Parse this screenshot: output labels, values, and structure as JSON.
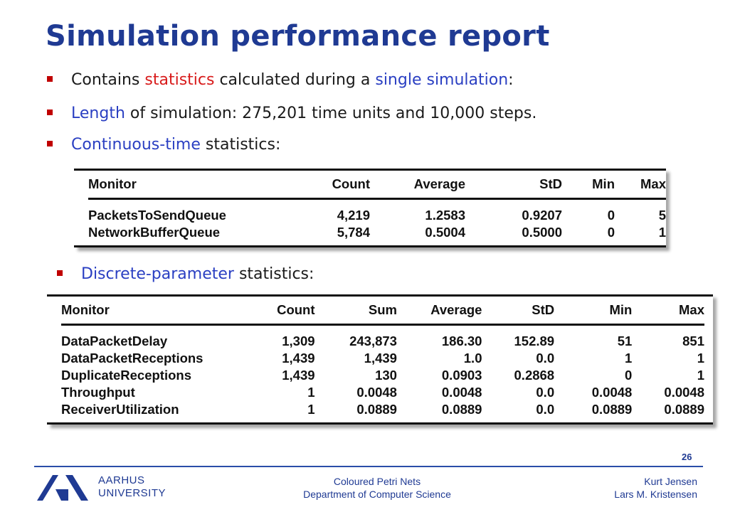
{
  "title": "Simulation performance report",
  "bullets": {
    "b1": {
      "pre": "Contains ",
      "red": "statistics",
      "mid": " calculated during a ",
      "blue": "single simulation",
      "post": ":"
    },
    "b2": {
      "blue": "Length",
      "post": " of simulation: 275,201 time units and 10,000 steps."
    },
    "b3": {
      "blue": "Continuous-time",
      "post": " statistics:"
    },
    "b4": {
      "blue": "Discrete-parameter",
      "post": " statistics:"
    }
  },
  "continuous_table": {
    "headers": [
      "Monitor",
      "Count",
      "Average",
      "StD",
      "Min",
      "Max"
    ],
    "rows": [
      [
        "PacketsToSendQueue",
        "4,219",
        "1.2583",
        "0.9207",
        "0",
        "5"
      ],
      [
        "NetworkBufferQueue",
        "5,784",
        "0.5004",
        "0.5000",
        "0",
        "1"
      ]
    ]
  },
  "discrete_table": {
    "headers": [
      "Monitor",
      "Count",
      "Sum",
      "Average",
      "StD",
      "Min",
      "Max"
    ],
    "rows": [
      [
        "DataPacketDelay",
        "1,309",
        "243,873",
        "186.30",
        "152.89",
        "51",
        "851"
      ],
      [
        "DataPacketReceptions",
        "1,439",
        "1,439",
        "1.0",
        "0.0",
        "1",
        "1"
      ],
      [
        "DuplicateReceptions",
        "1,439",
        "130",
        "0.0903",
        "0.2868",
        "0",
        "1"
      ],
      [
        "Throughput",
        "1",
        "0.0048",
        "0.0048",
        "0.0",
        "0.0048",
        "0.0048"
      ],
      [
        "ReceiverUtilization",
        "1",
        "0.0889",
        "0.0889",
        "0.0",
        "0.0889",
        "0.0889"
      ]
    ]
  },
  "footer": {
    "page_number": "26",
    "university_line1": "AARHUS",
    "university_line2": "UNIVERSITY",
    "center_line1": "Coloured Petri Nets",
    "center_line2": "Department of Computer Science",
    "right_line1": "Kurt Jensen",
    "right_line2": "Lars M. Kristensen"
  },
  "colors": {
    "title": "#1f3a93",
    "accent_red": "#d81b1b",
    "accent_blue": "#2a3fc2",
    "bullet": "#c00000"
  }
}
